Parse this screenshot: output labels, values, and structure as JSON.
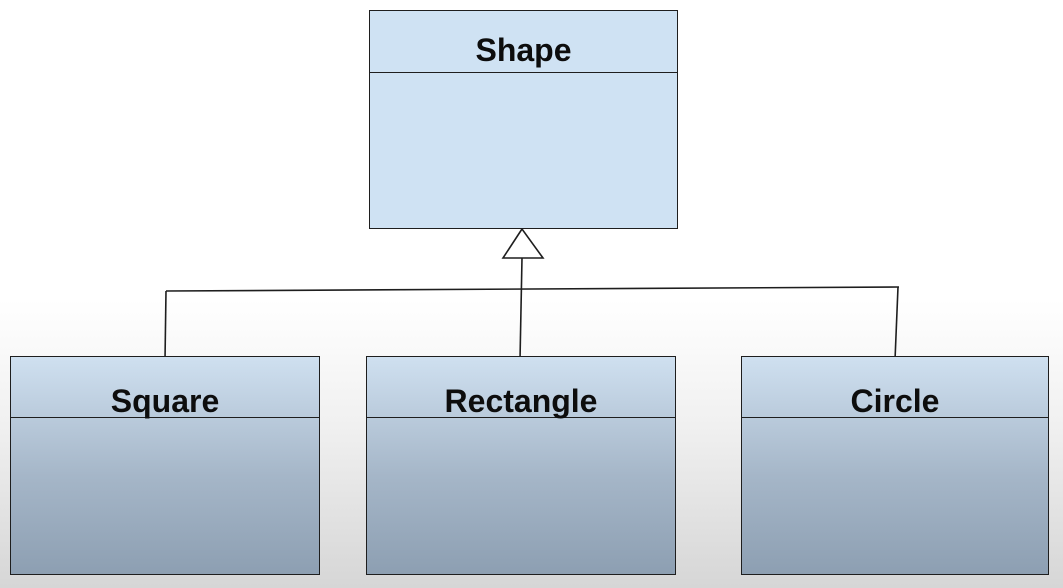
{
  "diagram": {
    "parent": {
      "name": "Shape"
    },
    "children": [
      {
        "name": "Square"
      },
      {
        "name": "Rectangle"
      },
      {
        "name": "Circle"
      }
    ],
    "relationship": "generalization",
    "colors": {
      "parent_fill": "#cfe2f3",
      "child_fill_top": "#cfe0f0",
      "child_fill_bottom": "#8d9fb2",
      "line": "#1e1e1e"
    }
  }
}
